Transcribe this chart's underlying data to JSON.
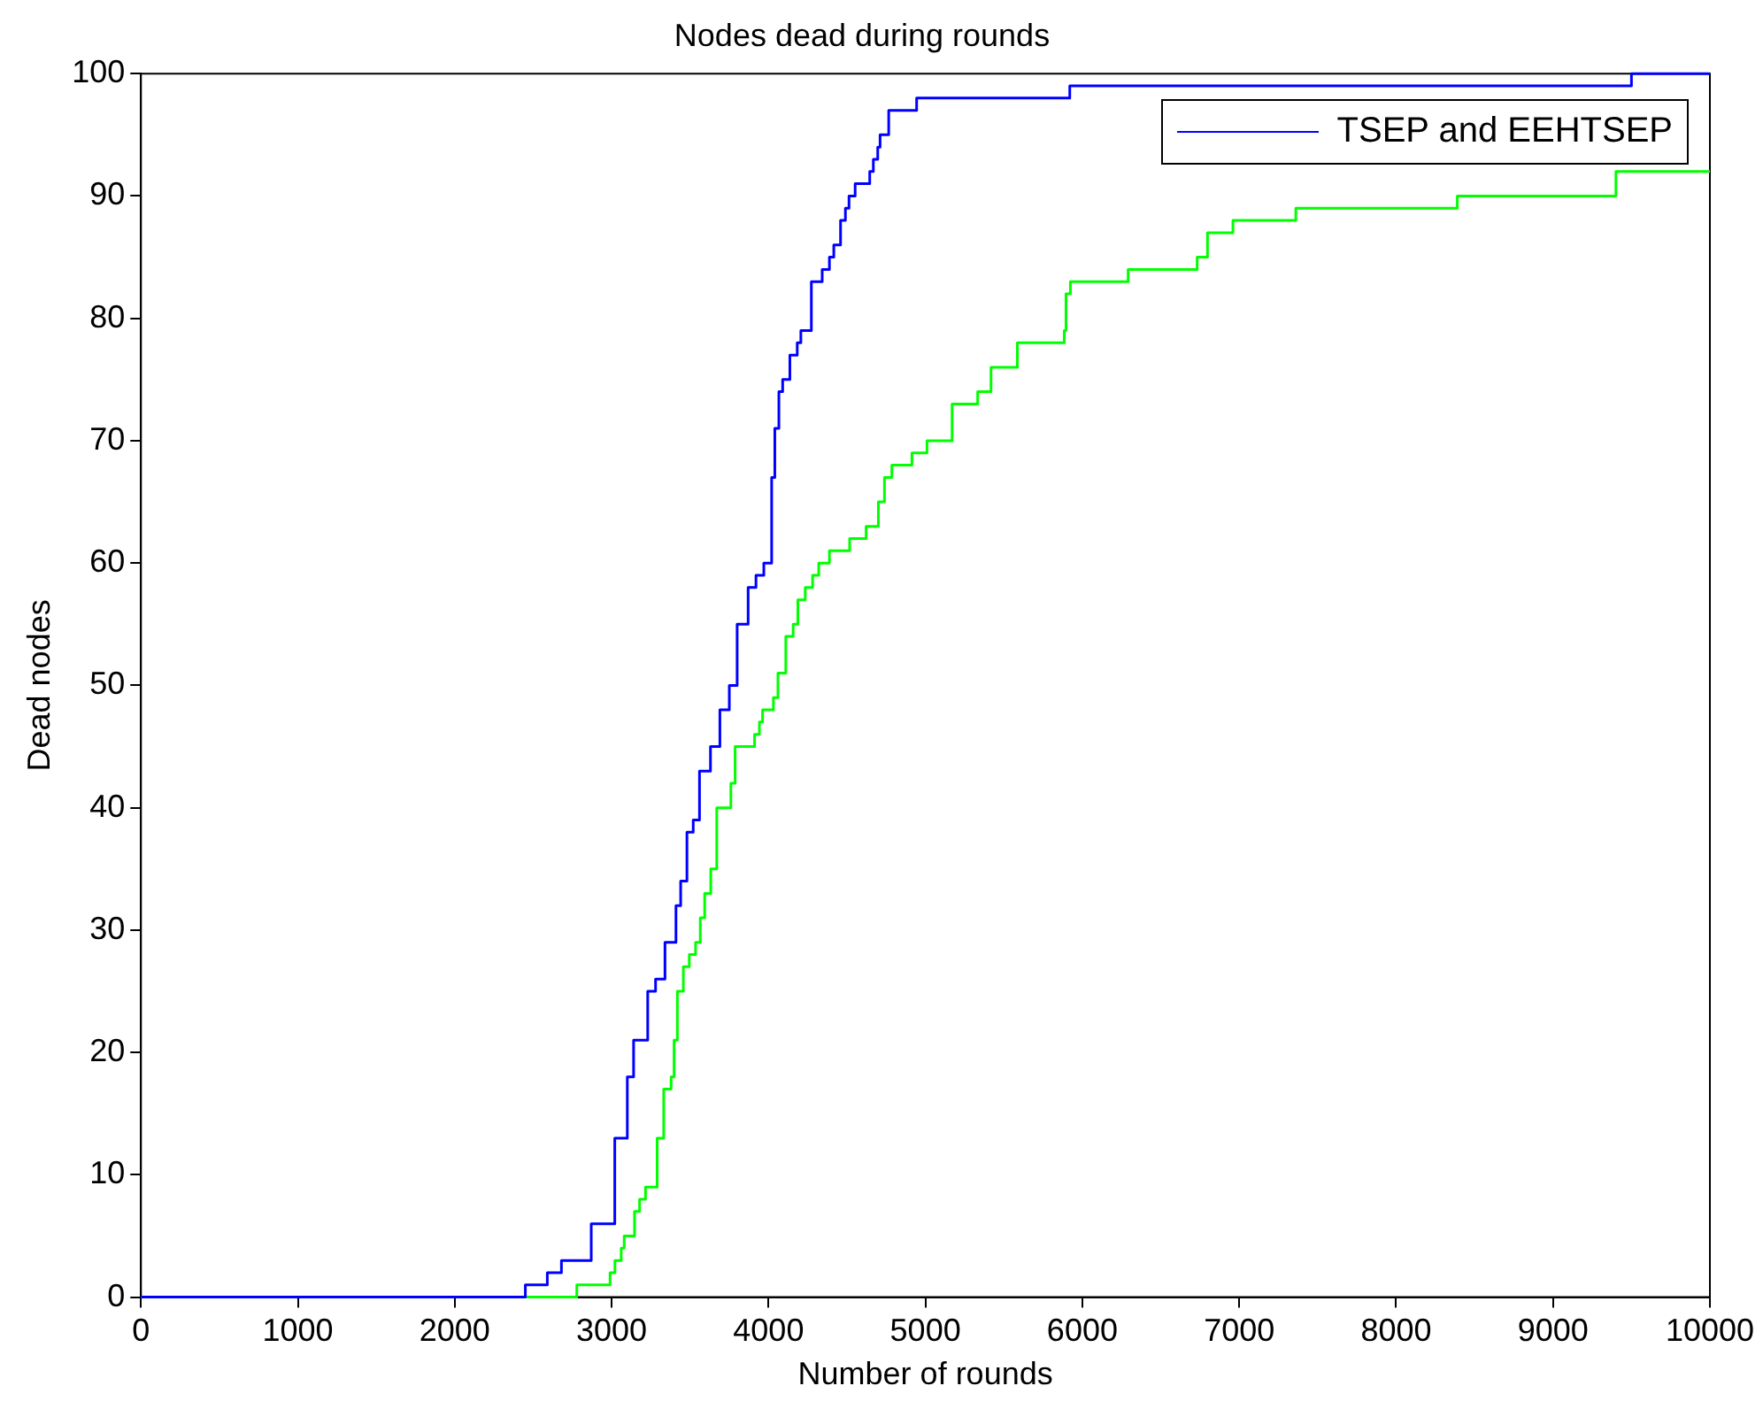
{
  "chart_data": {
    "type": "step",
    "title": "Nodes dead during rounds",
    "xlabel": "Number of rounds",
    "ylabel": "Dead nodes",
    "xlim": [
      0,
      10000
    ],
    "xticks": [
      0,
      1000,
      2000,
      3000,
      4000,
      5000,
      6000,
      7000,
      8000,
      9000,
      10000
    ],
    "ylim": [
      0,
      100
    ],
    "yticks": [
      0,
      10,
      20,
      30,
      40,
      50,
      60,
      70,
      80,
      90,
      100
    ],
    "legend": "top right",
    "marker": "none",
    "series": [
      {
        "name": "TSEP and EEHTSEP",
        "color": "#0000ff",
        "x": [
          0,
          2450,
          2590,
          2680,
          2870,
          3020,
          3100,
          3140,
          3230,
          3280,
          3340,
          3410,
          3440,
          3480,
          3520,
          3560,
          3630,
          3690,
          3750,
          3800,
          3870,
          3920,
          3970,
          4020,
          4040,
          4066,
          4090,
          4136,
          4183,
          4206,
          4273,
          4342,
          4388,
          4416,
          4459,
          4490,
          4513,
          4552,
          4645,
          4668,
          4696,
          4711,
          4766,
          4944,
          5920,
          9500,
          10000
        ],
        "values": [
          0,
          1,
          2,
          3,
          6,
          13,
          18,
          21,
          25,
          26,
          29,
          32,
          34,
          38,
          39,
          43,
          45,
          48,
          50,
          55,
          58,
          59,
          60,
          67,
          71,
          74,
          75,
          77,
          78,
          79,
          83,
          84,
          85,
          86,
          88,
          89,
          90,
          91,
          92,
          93,
          94,
          95,
          97,
          98,
          99,
          100,
          100
        ]
      },
      {
        "color": "#00ff00",
        "x": [
          0,
          2778,
          2990,
          3021,
          3061,
          3080,
          3146,
          3178,
          3216,
          3290,
          3332,
          3379,
          3398,
          3419,
          3457,
          3495,
          3535,
          3565,
          3593,
          3632,
          3670,
          3760,
          3787,
          3911,
          3942,
          3962,
          4031,
          4060,
          4110,
          4157,
          4187,
          4234,
          4281,
          4320,
          4388,
          4517,
          4622,
          4700,
          4739,
          4786,
          4914,
          5010,
          5170,
          5333,
          5418,
          5586,
          5885,
          5896,
          5924,
          6292,
          6732,
          6798,
          6960,
          7361,
          8390,
          9401,
          10000
        ],
        "values": [
          0,
          1,
          2,
          3,
          4,
          5,
          7,
          8,
          9,
          13,
          17,
          18,
          21,
          25,
          27,
          28,
          29,
          31,
          33,
          35,
          40,
          42,
          45,
          46,
          47,
          48,
          49,
          51,
          54,
          55,
          57,
          58,
          59,
          60,
          61,
          62,
          63,
          65,
          67,
          68,
          69,
          70,
          73,
          74,
          76,
          78,
          79,
          82,
          83,
          84,
          85,
          87,
          88,
          89,
          90,
          92,
          92
        ]
      }
    ]
  }
}
